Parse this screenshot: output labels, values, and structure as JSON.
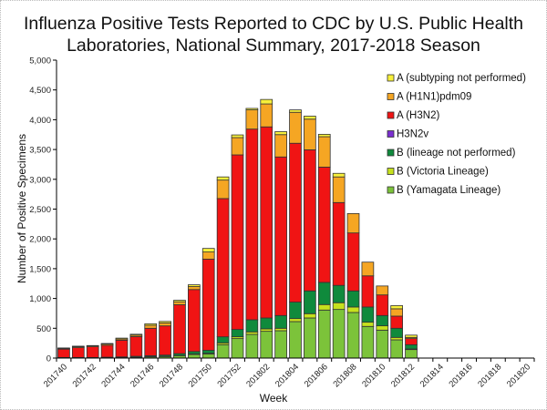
{
  "chart_data": {
    "type": "bar",
    "stacked": true,
    "title_lines": [
      "Influenza Positive Tests Reported to CDC by U.S. Public Health",
      "Laboratories, National Summary, 2017-2018 Season"
    ],
    "xlabel": "Week",
    "ylabel": "Number of Positive Specimens",
    "ylim": [
      0,
      5000
    ],
    "yticks": [
      0,
      500,
      1000,
      1500,
      2000,
      2500,
      3000,
      3500,
      4000,
      4500,
      5000
    ],
    "ytick_labels": [
      "0",
      "500",
      "1,000",
      "1,500",
      "2,000",
      "2,500",
      "3,000",
      "3,500",
      "4,000",
      "4,500",
      "5,000"
    ],
    "grid": false,
    "legend_position": "top-right",
    "categories": [
      "201740",
      "201741",
      "201742",
      "201743",
      "201744",
      "201745",
      "201746",
      "201747",
      "201748",
      "201749",
      "201750",
      "201751",
      "201752",
      "201801",
      "201802",
      "201803",
      "201804",
      "201805",
      "201806",
      "201807",
      "201808",
      "201809",
      "201810",
      "201811",
      "201812",
      "201813",
      "201814",
      "201815",
      "201816",
      "201817",
      "201818",
      "201819",
      "201820"
    ],
    "xtick_labels": [
      "201740",
      "201742",
      "201744",
      "201746",
      "201748",
      "201750",
      "201752",
      "201802",
      "201804",
      "201806",
      "201808",
      "201810",
      "201812",
      "201814",
      "201816",
      "201818",
      "201820"
    ],
    "series": [
      {
        "name": "B (Yamagata Lineage)",
        "color": "#7cc33a",
        "values": [
          5,
          5,
          5,
          10,
          10,
          15,
          20,
          25,
          40,
          60,
          70,
          225,
          327,
          398,
          449,
          459,
          612,
          673,
          806,
          816,
          765,
          531,
          469,
          306,
          143,
          0,
          0,
          0,
          0,
          0,
          0,
          0,
          0
        ]
      },
      {
        "name": "B (Victoria Lineage)",
        "color": "#c6e11d",
        "values": [
          0,
          0,
          0,
          0,
          0,
          0,
          5,
          5,
          5,
          10,
          10,
          30,
          30,
          41,
          41,
          41,
          51,
          72,
          92,
          113,
          92,
          71,
          72,
          41,
          10,
          0,
          0,
          0,
          0,
          0,
          0,
          0,
          0
        ]
      },
      {
        "name": "B (lineage not performed)",
        "color": "#0f8a3c",
        "values": [
          5,
          5,
          5,
          5,
          10,
          15,
          15,
          20,
          30,
          40,
          50,
          102,
          123,
          204,
          183,
          214,
          276,
          382,
          372,
          291,
          270,
          255,
          173,
          153,
          71,
          0,
          0,
          0,
          0,
          0,
          0,
          0,
          0
        ]
      },
      {
        "name": "H3N2v",
        "color": "#7b2fd0",
        "values": [
          0,
          0,
          0,
          0,
          0,
          0,
          0,
          0,
          0,
          0,
          0,
          0,
          0,
          0,
          0,
          0,
          0,
          0,
          0,
          0,
          0,
          0,
          0,
          0,
          0,
          0,
          0,
          0,
          0,
          0,
          0,
          0,
          0
        ]
      },
      {
        "name": "A (H3N2)",
        "color": "#f01414",
        "values": [
          140,
          165,
          180,
          200,
          280,
          330,
          460,
          490,
          820,
          1040,
          1530,
          2320,
          2930,
          3200,
          3207,
          2661,
          2666,
          2368,
          1935,
          1390,
          973,
          523,
          346,
          204,
          103,
          0,
          0,
          0,
          0,
          0,
          0,
          0,
          0
        ]
      },
      {
        "name": "A (H1N1)pdm09",
        "color": "#f5a623",
        "values": [
          10,
          15,
          15,
          20,
          20,
          25,
          50,
          50,
          50,
          50,
          120,
          310,
          290,
          322,
          385,
          375,
          520,
          515,
          510,
          430,
          325,
          230,
          150,
          123,
          20,
          0,
          0,
          0,
          0,
          0,
          0,
          0,
          0
        ]
      },
      {
        "name": "A (subtyping not performed)",
        "color": "#f7f03a",
        "values": [
          10,
          10,
          5,
          10,
          15,
          15,
          25,
          25,
          25,
          30,
          60,
          53,
          45,
          25,
          75,
          50,
          40,
          50,
          40,
          60,
          0,
          0,
          0,
          53,
          38,
          0,
          0,
          0,
          0,
          0,
          0,
          0,
          0
        ]
      }
    ],
    "legend_order": [
      "A (subtyping not performed)",
      "A (H1N1)pdm09",
      "A (H3N2)",
      "H3N2v",
      "B (lineage not performed)",
      "B (Victoria Lineage)",
      "B (Yamagata Lineage)"
    ]
  }
}
